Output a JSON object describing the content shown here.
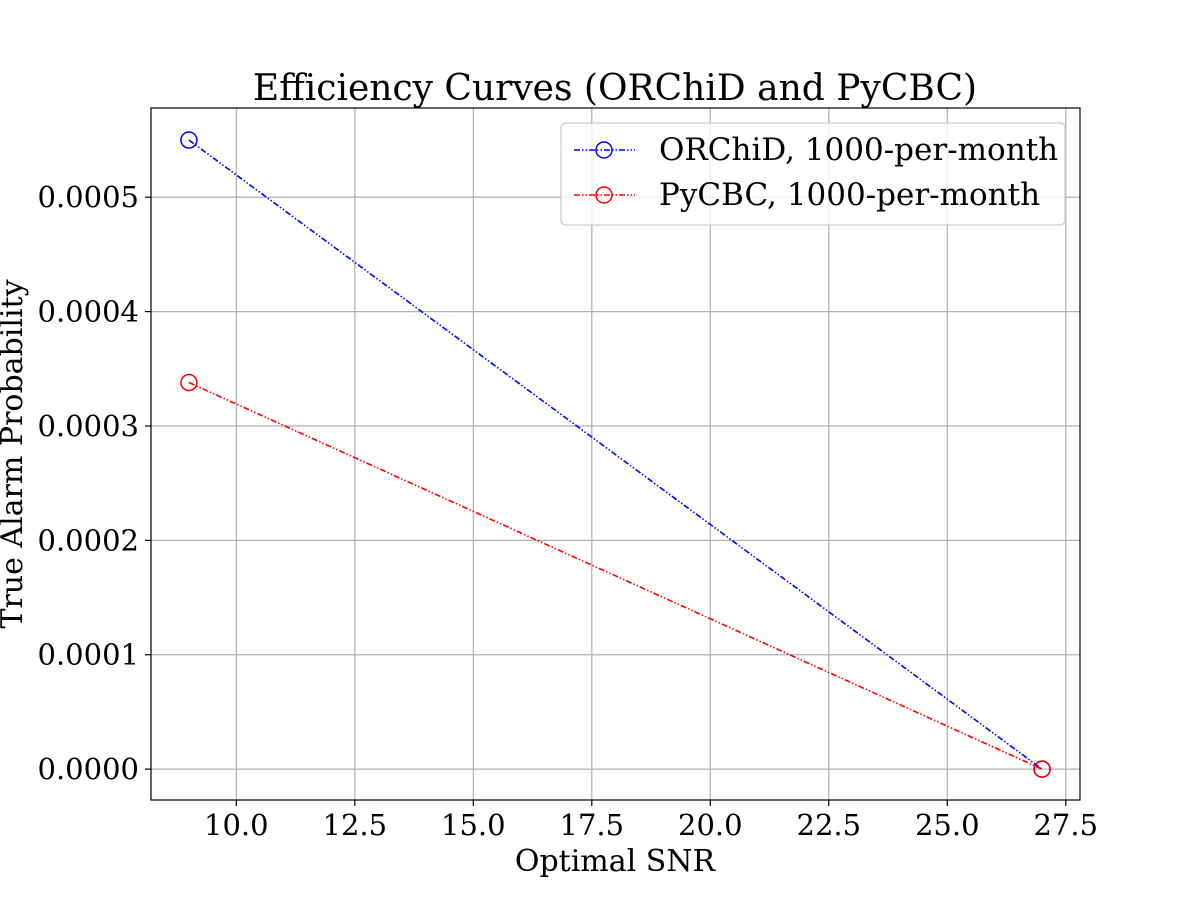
{
  "chart_data": {
    "type": "line",
    "title": "Efficiency Curves (ORChiD and PyCBC)",
    "xlabel": "Optimal SNR",
    "ylabel": "True Alarm Probability",
    "xlim": [
      8.2,
      27.8
    ],
    "ylim": [
      -2.7e-05,
      0.000578
    ],
    "grid": true,
    "legend_position": "top-right",
    "x_ticks": [
      {
        "value": 10.0,
        "label": "10.0"
      },
      {
        "value": 12.5,
        "label": "12.5"
      },
      {
        "value": 15.0,
        "label": "15.0"
      },
      {
        "value": 17.5,
        "label": "17.5"
      },
      {
        "value": 20.0,
        "label": "20.0"
      },
      {
        "value": 22.5,
        "label": "22.5"
      },
      {
        "value": 25.0,
        "label": "25.0"
      },
      {
        "value": 27.5,
        "label": "27.5"
      }
    ],
    "y_ticks": [
      {
        "value": 0.0,
        "label": "0.0000"
      },
      {
        "value": 0.0001,
        "label": "0.0001"
      },
      {
        "value": 0.0002,
        "label": "0.0002"
      },
      {
        "value": 0.0003,
        "label": "0.0003"
      },
      {
        "value": 0.0004,
        "label": "0.0004"
      },
      {
        "value": 0.0005,
        "label": "0.0005"
      }
    ],
    "series": [
      {
        "name": "ORChiD, 1000-per-month",
        "color": "#0000ff",
        "line_style": "dash-dot-dot",
        "marker": "open-circle",
        "x": [
          9,
          27
        ],
        "y": [
          0.00055,
          0.0
        ]
      },
      {
        "name": "PyCBC, 1000-per-month",
        "color": "#ff0000",
        "line_style": "dash-dot-dot",
        "marker": "open-circle",
        "x": [
          9,
          27
        ],
        "y": [
          0.000338,
          0.0
        ]
      }
    ]
  }
}
